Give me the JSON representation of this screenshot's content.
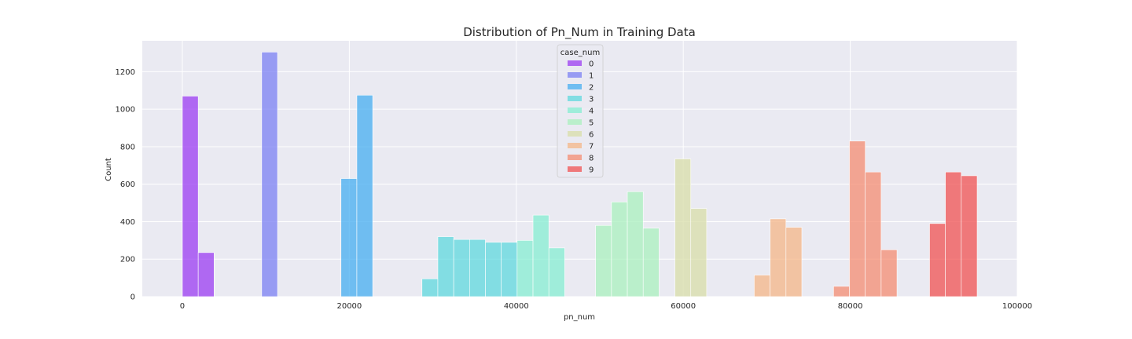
{
  "chart_data": {
    "type": "bar",
    "title": "Distribution of Pn_Num in Training Data",
    "xlabel": "pn_num",
    "ylabel": "Count",
    "xlim": [
      -4800,
      100000
    ],
    "ylim": [
      0,
      1365
    ],
    "x_ticks": [
      0,
      20000,
      40000,
      60000,
      80000,
      100000
    ],
    "x_tick_labels": [
      "0",
      "20000",
      "40000",
      "60000",
      "80000",
      "100000"
    ],
    "y_ticks": [
      0,
      200,
      400,
      600,
      800,
      1000,
      1200
    ],
    "y_tick_labels": [
      "0",
      "200",
      "400",
      "600",
      "800",
      "1000",
      "1200"
    ],
    "grid": true,
    "legend_title": "case_num",
    "legend_position": "top-center",
    "series": [
      {
        "name": "0",
        "color": "#9b3cf2",
        "bins": [
          {
            "x0": 0,
            "x1": 1900,
            "count": 1070
          },
          {
            "x0": 1900,
            "x1": 3800,
            "count": 235
          }
        ]
      },
      {
        "name": "1",
        "color": "#7b80f3",
        "bins": [
          {
            "x0": 9500,
            "x1": 11400,
            "count": 1305
          }
        ]
      },
      {
        "name": "2",
        "color": "#46aef0",
        "bins": [
          {
            "x0": 19000,
            "x1": 20900,
            "count": 630
          },
          {
            "x0": 20900,
            "x1": 22800,
            "count": 1075
          }
        ]
      },
      {
        "name": "3",
        "color": "#5fd8dd",
        "bins": [
          {
            "x0": 28700,
            "x1": 30600,
            "count": 95
          },
          {
            "x0": 30600,
            "x1": 32500,
            "count": 320
          },
          {
            "x0": 32500,
            "x1": 34400,
            "count": 305
          },
          {
            "x0": 34400,
            "x1": 36300,
            "count": 305
          },
          {
            "x0": 36300,
            "x1": 38200,
            "count": 290
          },
          {
            "x0": 38200,
            "x1": 40100,
            "count": 290
          }
        ]
      },
      {
        "name": "4",
        "color": "#86eed2",
        "bins": [
          {
            "x0": 40100,
            "x1": 42000,
            "count": 300
          },
          {
            "x0": 42000,
            "x1": 43900,
            "count": 435
          },
          {
            "x0": 43900,
            "x1": 45800,
            "count": 260
          }
        ]
      },
      {
        "name": "5",
        "color": "#aaf0bd",
        "bins": [
          {
            "x0": 49500,
            "x1": 51400,
            "count": 380
          },
          {
            "x0": 51400,
            "x1": 53300,
            "count": 505
          },
          {
            "x0": 53300,
            "x1": 55200,
            "count": 560
          },
          {
            "x0": 55200,
            "x1": 57100,
            "count": 365
          }
        ]
      },
      {
        "name": "6",
        "color": "#d8dea8",
        "bins": [
          {
            "x0": 59000,
            "x1": 60900,
            "count": 735
          },
          {
            "x0": 60900,
            "x1": 62800,
            "count": 470
          }
        ]
      },
      {
        "name": "7",
        "color": "#f4b687",
        "bins": [
          {
            "x0": 68500,
            "x1": 70400,
            "count": 115
          },
          {
            "x0": 70400,
            "x1": 72300,
            "count": 415
          },
          {
            "x0": 72300,
            "x1": 74200,
            "count": 370
          }
        ]
      },
      {
        "name": "8",
        "color": "#f48c72",
        "bins": [
          {
            "x0": 78000,
            "x1": 79900,
            "count": 55
          },
          {
            "x0": 79900,
            "x1": 81800,
            "count": 830
          },
          {
            "x0": 81800,
            "x1": 83700,
            "count": 665
          },
          {
            "x0": 83700,
            "x1": 85600,
            "count": 250
          }
        ]
      },
      {
        "name": "9",
        "color": "#f05252",
        "bins": [
          {
            "x0": 89500,
            "x1": 91400,
            "count": 390
          },
          {
            "x0": 91400,
            "x1": 93300,
            "count": 665
          },
          {
            "x0": 93300,
            "x1": 95200,
            "count": 645
          }
        ]
      }
    ]
  }
}
